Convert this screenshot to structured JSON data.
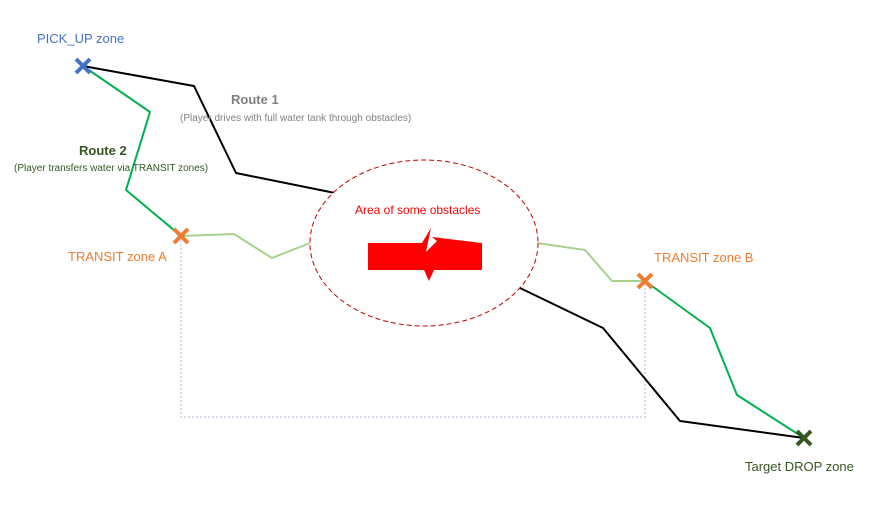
{
  "labels": {
    "pickup": "PICK_UP zone",
    "transit_a": "TRANSIT zone A",
    "transit_b": "TRANSIT zone B",
    "drop": "Target DROP zone",
    "obstacles": "Area of some obstacles"
  },
  "routes": {
    "route1": {
      "title": "Route 1",
      "description": "(Player drives with full water tank through obstacles)"
    },
    "route2": {
      "title": "Route 2",
      "description": "(Player transfers water via TRANSIT zones)"
    }
  },
  "colors": {
    "pickup": "#4472C4",
    "transit": "#ED7D31",
    "drop": "#375623",
    "route1_line": "#000000",
    "route1_text": "#808080",
    "route2_line": "#00B050",
    "route2_faded": "#A9D18E",
    "route2_text": "#375623",
    "obstacle": "#FF0000",
    "obstacle_border": "#C00000",
    "dotted_link": "#B4B4D8"
  },
  "icons": {
    "zone_marker": "cross-mark-icon",
    "obstacle_symbol": "lightning-break-icon"
  }
}
